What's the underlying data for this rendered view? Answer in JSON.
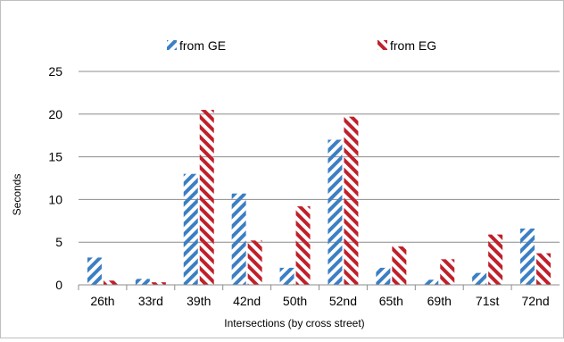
{
  "chart_data": {
    "type": "bar",
    "categories": [
      "26th",
      "33rd",
      "39th",
      "42nd",
      "50th",
      "52nd",
      "65th",
      "69th",
      "71st",
      "72nd"
    ],
    "series": [
      {
        "name": "from GE",
        "color": "#3b7fc4",
        "pattern": "diagonal-forward",
        "values": [
          3.2,
          0.7,
          13.0,
          10.7,
          2.0,
          17.0,
          2.0,
          0.6,
          1.4,
          6.6
        ]
      },
      {
        "name": "from EG",
        "color": "#c0202a",
        "pattern": "diagonal-backward",
        "values": [
          0.5,
          0.3,
          20.5,
          5.2,
          9.2,
          19.7,
          4.5,
          3.0,
          5.9,
          3.7
        ]
      }
    ],
    "title": "",
    "xlabel": "Intersections (by cross street)",
    "ylabel": "Seconds",
    "ylim": [
      0,
      25
    ],
    "yticks": [
      0,
      5,
      10,
      15,
      20,
      25
    ],
    "grid": true,
    "legend_position": "top"
  }
}
